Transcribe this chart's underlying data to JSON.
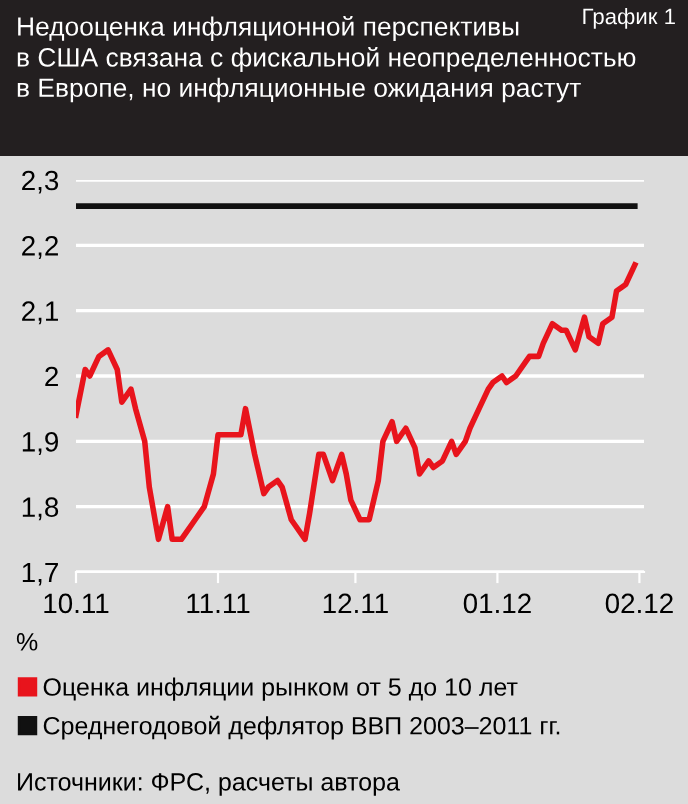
{
  "chart_data": {
    "type": "line",
    "title": "Недооценка инфляционной перспективы\nв США связана с фискальной неопределенностью\nв Европе, но инфляционные ожидания растут",
    "ylabel": "%",
    "annotations": [
      "График 1",
      "Источники: ФРС, расчеты автора"
    ],
    "series": [
      {
        "name": "Оценка инфляции рынком от 5 до 10 лет",
        "color": "#e8141c",
        "x": [
          "2011-10-01",
          "2011-10-03",
          "2011-10-04",
          "2011-10-06",
          "2011-10-08",
          "2011-10-10",
          "2011-10-11",
          "2011-10-13",
          "2011-10-14",
          "2011-10-16",
          "2011-10-17",
          "2011-10-19",
          "2011-10-21",
          "2011-10-22",
          "2011-10-24",
          "2011-10-25",
          "2011-10-27",
          "2011-10-29",
          "2011-10-31",
          "2011-11-01",
          "2011-11-03",
          "2011-11-04",
          "2011-11-06",
          "2011-11-07",
          "2011-11-09",
          "2011-11-11",
          "2011-11-12",
          "2011-11-14",
          "2011-11-15",
          "2011-11-17",
          "2011-11-18",
          "2011-11-20",
          "2011-11-21",
          "2011-11-23",
          "2011-11-24",
          "2011-11-26",
          "2011-11-28",
          "2011-11-29",
          "2011-11-30",
          "2011-12-02",
          "2011-12-04",
          "2011-12-06",
          "2011-12-07",
          "2011-12-09",
          "2011-12-10",
          "2011-12-12",
          "2011-12-14",
          "2011-12-15",
          "2011-12-17",
          "2011-12-18",
          "2011-12-20",
          "2011-12-22",
          "2011-12-23",
          "2011-12-25",
          "2011-12-26",
          "2011-12-28",
          "2011-12-30",
          "2011-12-31",
          "2012-01-02",
          "2012-01-03",
          "2012-01-05",
          "2012-01-07",
          "2012-01-08",
          "2012-01-10",
          "2012-01-11",
          "2012-01-13",
          "2012-01-15",
          "2012-01-16",
          "2012-01-18",
          "2012-01-20",
          "2012-01-21",
          "2012-01-23",
          "2012-01-24",
          "2012-01-26",
          "2012-01-27",
          "2012-01-29",
          "2012-01-31"
        ],
        "values": [
          1.94,
          2.01,
          2.0,
          2.03,
          2.04,
          2.01,
          1.96,
          1.98,
          1.95,
          1.9,
          1.83,
          1.75,
          1.8,
          1.75,
          1.75,
          1.76,
          1.78,
          1.8,
          1.85,
          1.91,
          1.91,
          1.91,
          1.91,
          1.95,
          1.88,
          1.82,
          1.83,
          1.84,
          1.83,
          1.78,
          1.77,
          1.75,
          1.79,
          1.88,
          1.88,
          1.84,
          1.88,
          1.85,
          1.81,
          1.78,
          1.78,
          1.84,
          1.9,
          1.93,
          1.9,
          1.92,
          1.89,
          1.85,
          1.87,
          1.86,
          1.87,
          1.9,
          1.88,
          1.9,
          1.92,
          1.95,
          1.98,
          1.99,
          2.0,
          1.99,
          2.0,
          2.02,
          2.03,
          2.03,
          2.05,
          2.08,
          2.07,
          2.07,
          2.04,
          2.09,
          2.06,
          2.05,
          2.08,
          2.09,
          2.13,
          2.14,
          2.17
        ]
      },
      {
        "name": "Среднегодовой дефлятор ВВП 2003–2011 гг.",
        "color": "#111111",
        "x": [
          "2011-10-01",
          "2012-01-31"
        ],
        "values": [
          2.26,
          2.26
        ]
      }
    ],
    "xlim": [
      "2011-10-01",
      "2012-02-02"
    ],
    "xticks": [
      {
        "value": "2011-10-01",
        "label": "10.11"
      },
      {
        "value": "2011-11-01",
        "label": "11.11"
      },
      {
        "value": "2011-12-01",
        "label": "12.11"
      },
      {
        "value": "2012-01-01",
        "label": "01.12"
      },
      {
        "value": "2012-02-01",
        "label": "02.12"
      }
    ],
    "ylim": [
      1.7,
      2.3
    ],
    "yticks": [
      {
        "value": 1.7,
        "label": "1,7"
      },
      {
        "value": 1.8,
        "label": "1,8"
      },
      {
        "value": 1.9,
        "label": "1,9"
      },
      2,
      {
        "value": 2.1,
        "label": "2,1"
      },
      {
        "value": 2.2,
        "label": "2,2"
      },
      {
        "value": 2.3,
        "label": "2,3"
      }
    ],
    "grid": "y",
    "legend": "bottom",
    "marker": "none",
    "line_style": "solid"
  }
}
